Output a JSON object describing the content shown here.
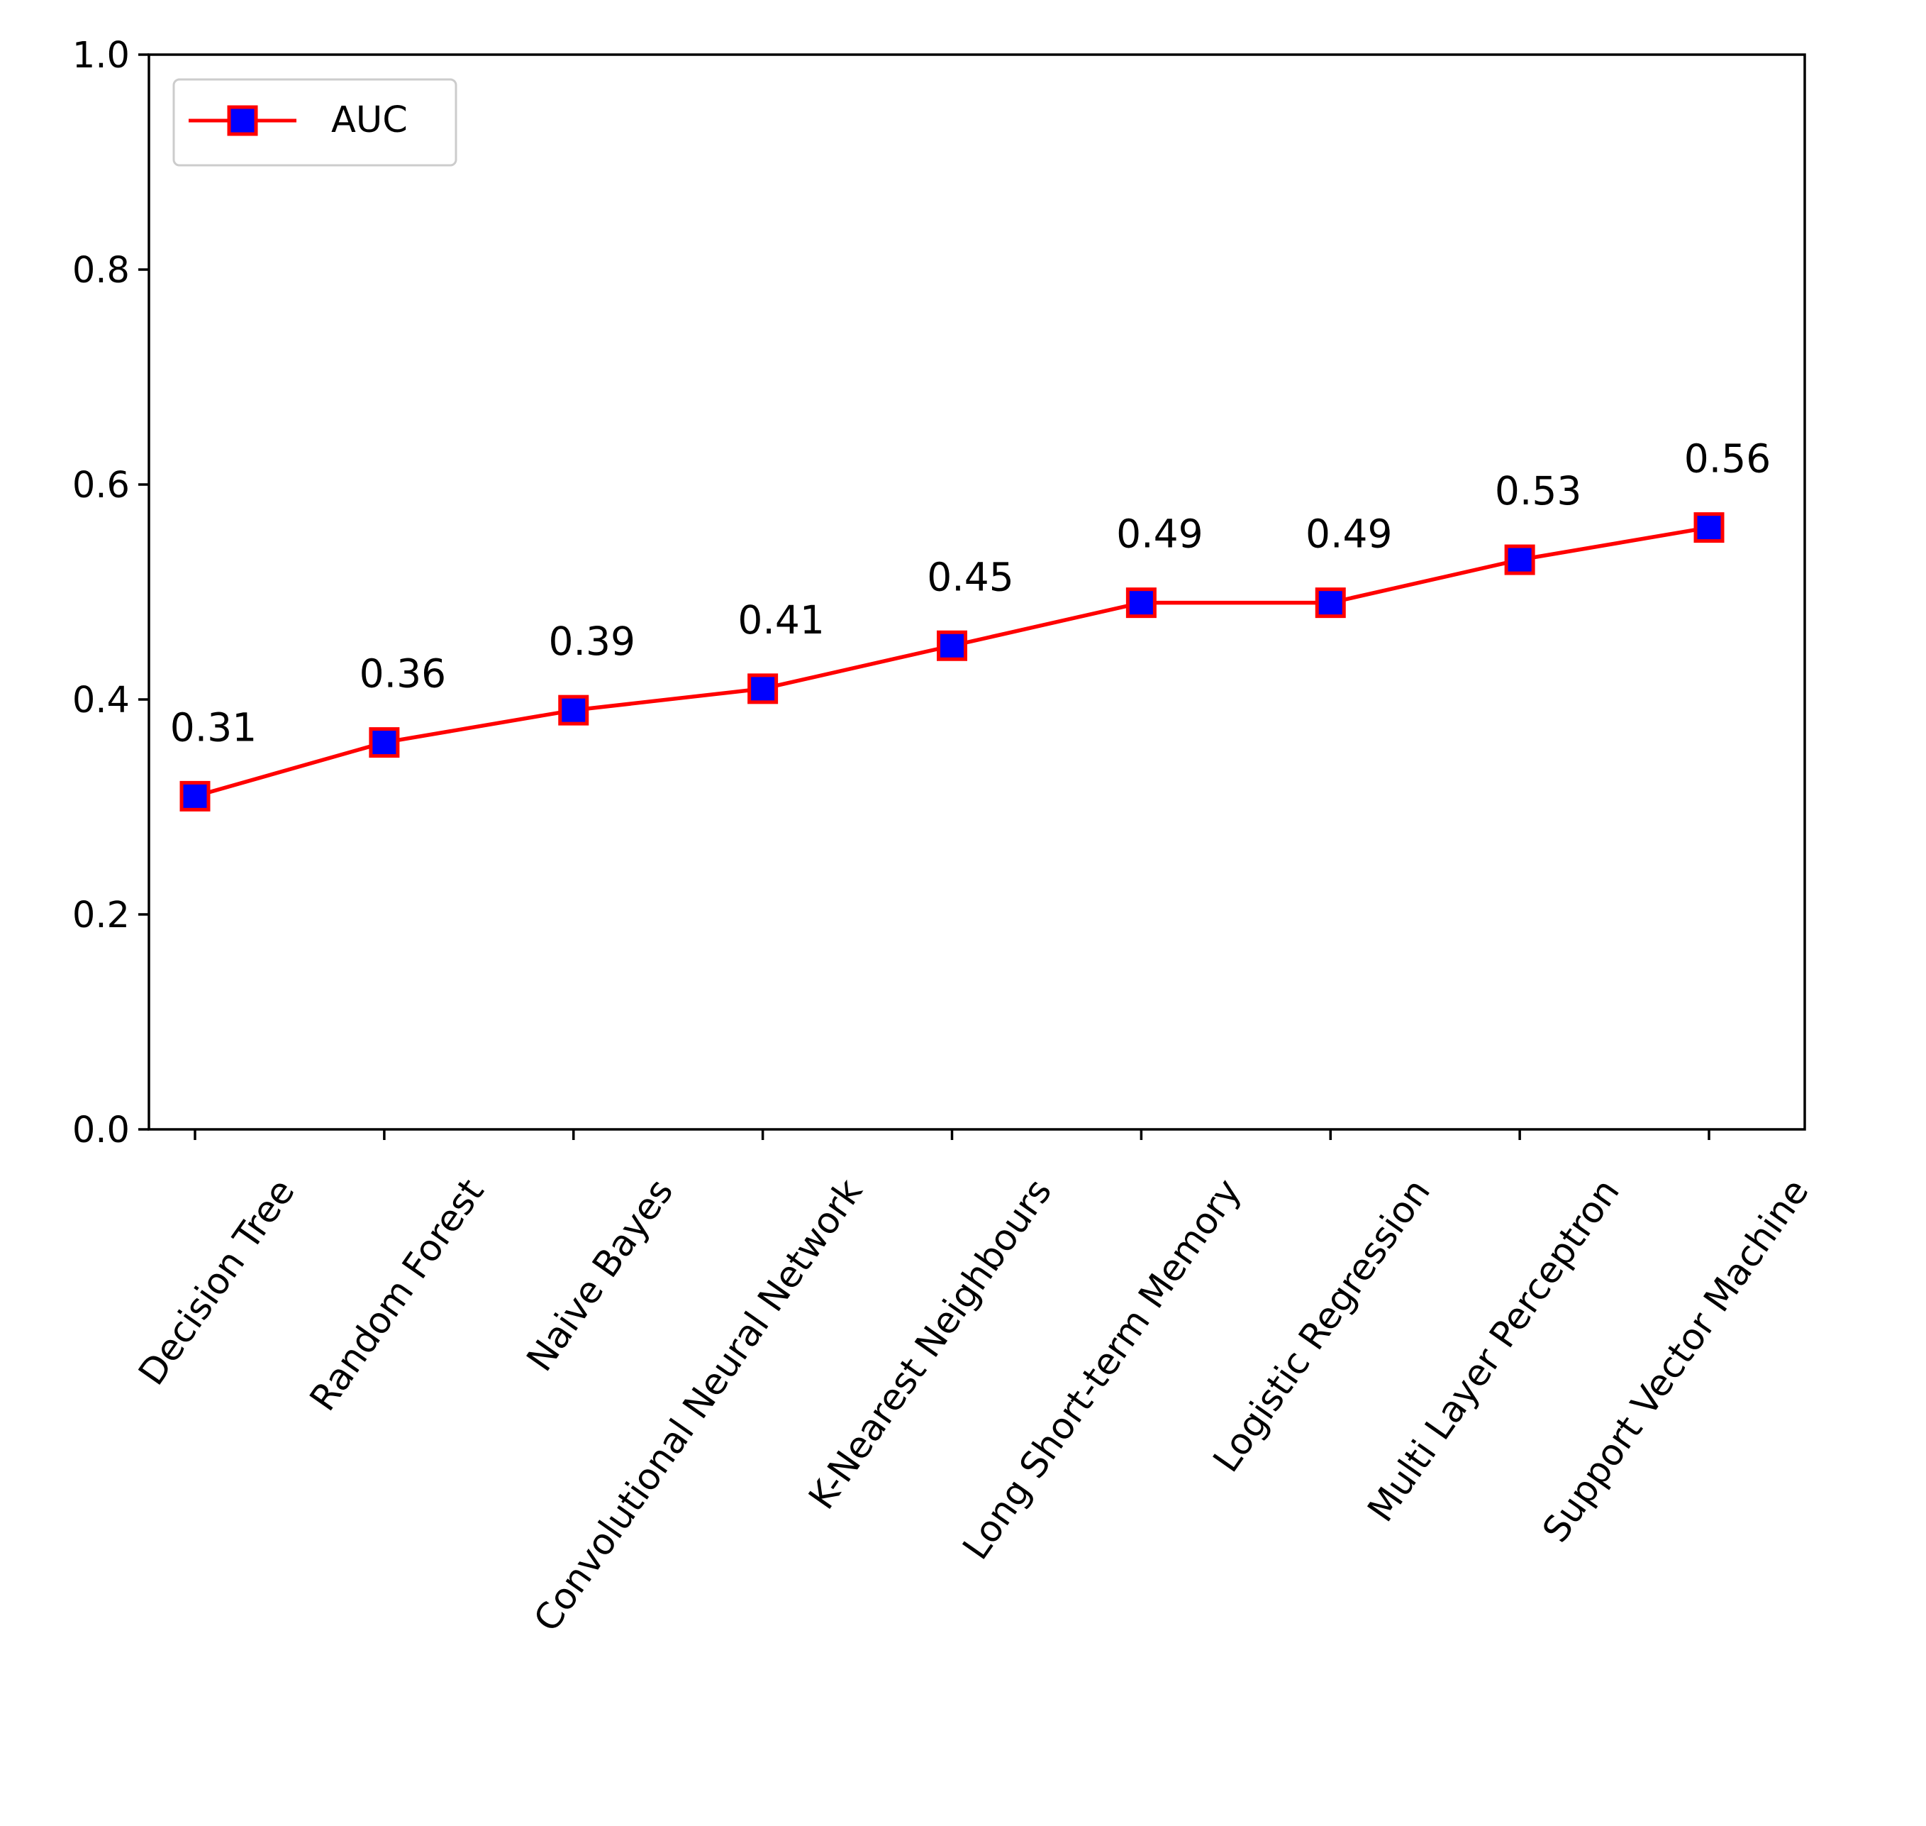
{
  "chart_data": {
    "type": "line",
    "title": "",
    "xlabel": "",
    "ylabel": "",
    "categories": [
      "Decision Tree",
      "Random Forest",
      "Naive Bayes",
      "Convolutional Neural Network",
      "K-Nearest Neighbours",
      "Long Short-term Memory",
      "Logistic Regression",
      "Multi Layer Perceptron",
      "Support Vector Machine"
    ],
    "series": [
      {
        "name": "AUC",
        "values": [
          0.31,
          0.36,
          0.39,
          0.41,
          0.45,
          0.49,
          0.49,
          0.53,
          0.56
        ],
        "data_labels": [
          "0.31",
          "0.36",
          "0.39",
          "0.41",
          "0.45",
          "0.49",
          "0.49",
          "0.53",
          "0.56"
        ],
        "line_color": "#ff0000",
        "marker": "square",
        "marker_face_color": "#0000ff",
        "marker_edge_color": "#ff0000"
      }
    ],
    "ylim": [
      0.0,
      1.0
    ],
    "yticks": [
      "0.0",
      "0.2",
      "0.4",
      "0.6",
      "0.8",
      "1.0"
    ],
    "xtick_rotation": "45 degrees",
    "grid": false,
    "legend": {
      "position": "top-left",
      "entries": [
        "AUC"
      ]
    }
  }
}
